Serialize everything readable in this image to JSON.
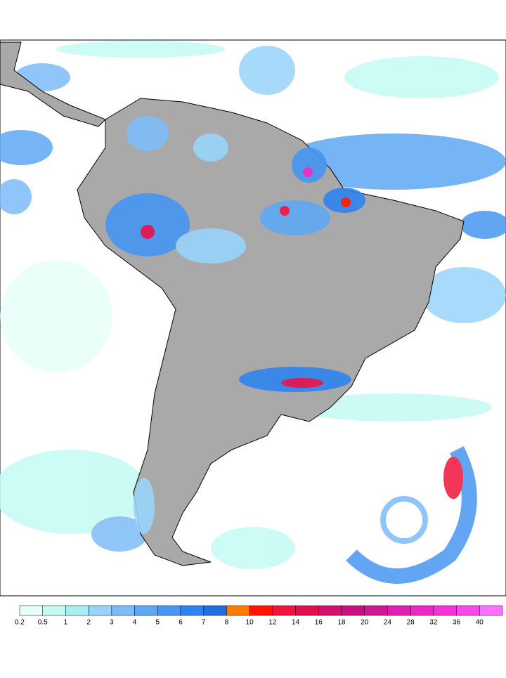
{
  "colorbar": {
    "ticks": [
      0.2,
      0.5,
      1,
      2,
      3,
      4,
      5,
      6,
      7,
      8,
      10,
      12,
      14,
      16,
      18,
      20,
      24,
      28,
      32,
      36,
      40
    ],
    "colors": [
      "#e6fff8",
      "#c4faf4",
      "#a6eef0",
      "#98d4fa",
      "#7cbcf8",
      "#5ea8f4",
      "#4696f2",
      "#2e84ee",
      "#1e6ee0",
      "#ff7c00",
      "#ff1400",
      "#f0143c",
      "#e01050",
      "#d0106e",
      "#c81080",
      "#d01896",
      "#e020b0",
      "#ec28c4",
      "#f434d8",
      "#fa48ec",
      "#ff70ff"
    ]
  }
}
